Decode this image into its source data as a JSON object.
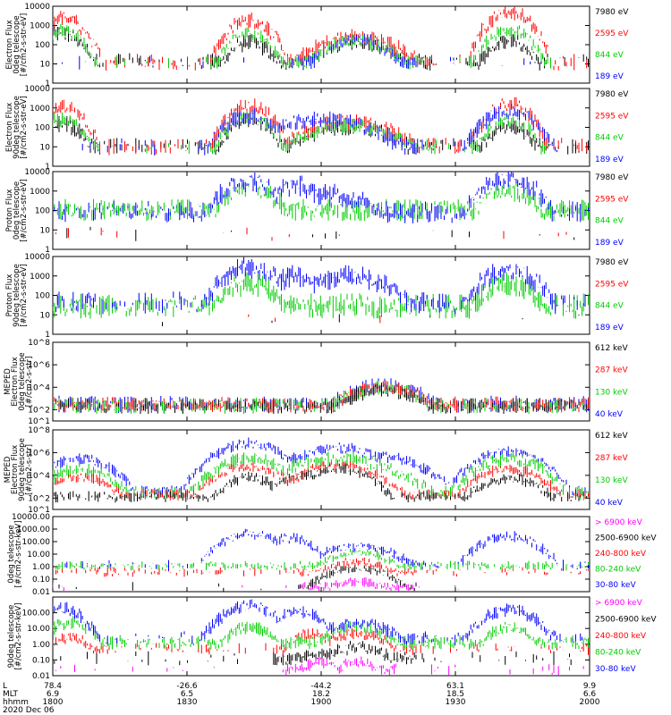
{
  "figure": {
    "date_label": "2020 Dec 06",
    "x_axis_row_labels": [
      "L",
      "MLT",
      "hhmm"
    ],
    "x_ticks": [
      {
        "L": "78.4",
        "MLT": "6.9",
        "hhmm": "1800"
      },
      {
        "L": "-26.6",
        "MLT": "6.5",
        "hhmm": "1830"
      },
      {
        "L": "-44.2",
        "MLT": "18.2",
        "hhmm": "1900"
      },
      {
        "L": "63.1",
        "MLT": "18.5",
        "hhmm": "1930"
      },
      {
        "L": "9.9",
        "MLT": "6.6",
        "hhmm": "2000"
      }
    ]
  },
  "colors": {
    "black": "#000000",
    "red": "#ff0000",
    "green": "#00cc00",
    "blue": "#0000ff",
    "magenta": "#ff00ff"
  },
  "chart_data": [
    {
      "type": "line",
      "ylabel": [
        "Electron Flux",
        "0deg telescope",
        "[#/cm2-s-str-eV]"
      ],
      "yscale": "log",
      "ylim": [
        1,
        10000
      ],
      "ytick_labels": [
        "1",
        "10",
        "100",
        "1000",
        "10000"
      ],
      "legend": [
        {
          "label": "7980 eV",
          "color": "#000000"
        },
        {
          "label": "2595 eV",
          "color": "#ff0000"
        },
        {
          "label": "844 eV",
          "color": "#00cc00"
        },
        {
          "label": "189 eV",
          "color": "#0000ff"
        }
      ],
      "series": [
        {
          "color": "#000000",
          "base": 10,
          "noise": 0.35,
          "density": 0.3,
          "bumps": [
            [
              1802,
              4,
              300
            ],
            [
              1844,
              4,
              100
            ],
            [
              1908,
              7,
              120
            ],
            [
              1942,
              4,
              120
            ]
          ]
        },
        {
          "color": "#ff0000",
          "base": 10,
          "noise": 0.35,
          "density": 0.25,
          "bumps": [
            [
              1802,
              4,
              2000
            ],
            [
              1844,
              4,
              1500
            ],
            [
              1908,
              8,
              200
            ],
            [
              1942,
              4,
              4000
            ]
          ]
        },
        {
          "color": "#00cc00",
          "base": 10,
          "noise": 0.3,
          "density": 0.1,
          "bumps": [
            [
              1802,
              4,
              400
            ],
            [
              1844,
              4,
              300
            ],
            [
              1908,
              7,
              120
            ],
            [
              1942,
              4,
              500
            ]
          ]
        },
        {
          "color": "#0000ff",
          "base": 10,
          "noise": 0.3,
          "density": 0.05,
          "bumps": [
            [
              1908,
              6,
              150
            ]
          ]
        }
      ]
    },
    {
      "type": "line",
      "ylabel": [
        "Electron Flux",
        "90deg telescope",
        "[#/cm2-s-str-eV]"
      ],
      "yscale": "log",
      "ylim": [
        1,
        10000
      ],
      "ytick_labels": [
        "1",
        "10",
        "100",
        "1000",
        "10000"
      ],
      "legend": [
        {
          "label": "7980 eV",
          "color": "#000000"
        },
        {
          "label": "2595 eV",
          "color": "#ff0000"
        },
        {
          "label": "844 eV",
          "color": "#00cc00"
        },
        {
          "label": "189 eV",
          "color": "#0000ff"
        }
      ],
      "series": [
        {
          "color": "#000000",
          "base": 8,
          "noise": 0.35,
          "density": 0.35,
          "bumps": [
            [
              1802,
              4,
              120
            ],
            [
              1844,
              4,
              200
            ],
            [
              1906,
              9,
              80
            ],
            [
              1942,
              4,
              100
            ]
          ]
        },
        {
          "color": "#ff0000",
          "base": 8,
          "noise": 0.35,
          "density": 0.25,
          "bumps": [
            [
              1802,
              4,
              800
            ],
            [
              1844,
              4,
              1000
            ],
            [
              1906,
              9,
              150
            ],
            [
              1942,
              4,
              1200
            ]
          ]
        },
        {
          "color": "#00cc00",
          "base": 8,
          "noise": 0.3,
          "density": 0.1,
          "bumps": [
            [
              1802,
              4,
              200
            ],
            [
              1844,
              4,
              300
            ],
            [
              1906,
              9,
              100
            ],
            [
              1942,
              4,
              200
            ]
          ]
        },
        {
          "color": "#0000ff",
          "base": 8,
          "noise": 0.35,
          "density": 0.1,
          "bumps": [
            [
              1844,
              5,
              300
            ],
            [
              1900,
              10,
              200
            ],
            [
              1942,
              5,
              500
            ]
          ]
        }
      ]
    },
    {
      "type": "line",
      "ylabel": [
        "Proton Flux",
        "0deg telescope",
        "[#/cm2-s-str-eV]"
      ],
      "yscale": "log",
      "ylim": [
        1,
        10000
      ],
      "ytick_labels": [
        "1",
        "10",
        "100",
        "1000",
        "10000"
      ],
      "legend": [
        {
          "label": "7980 eV",
          "color": "#000000"
        },
        {
          "label": "2595 eV",
          "color": "#ff0000"
        },
        {
          "label": "844 eV",
          "color": "#00cc00"
        },
        {
          "label": "189 eV",
          "color": "#0000ff"
        }
      ],
      "series": [
        {
          "color": "#000000",
          "base": 5,
          "noise": 0.3,
          "density": 0.03,
          "bumps": []
        },
        {
          "color": "#ff0000",
          "base": 5,
          "noise": 0.3,
          "density": 0.03,
          "bumps": []
        },
        {
          "color": "#00cc00",
          "base": 80,
          "noise": 0.45,
          "density": 0.92,
          "bumps": [
            [
              1844,
              5,
              1000
            ],
            [
              1942,
              5,
              800
            ]
          ]
        },
        {
          "color": "#0000ff",
          "base": 60,
          "noise": 0.45,
          "density": 0.55,
          "bumps": [
            [
              1844,
              5,
              2500
            ],
            [
              1854,
              4,
              1500
            ],
            [
              1900,
              10,
              500
            ],
            [
              1942,
              5,
              3000
            ]
          ]
        }
      ]
    },
    {
      "type": "line",
      "ylabel": [
        "Proton Flux",
        "90deg telescope",
        "[#/cm2-s-str-eV]"
      ],
      "yscale": "log",
      "ylim": [
        1,
        10000
      ],
      "ytick_labels": [
        "1",
        "10",
        "100",
        "1000",
        "10000"
      ],
      "legend": [
        {
          "label": "7980 eV",
          "color": "#000000"
        },
        {
          "label": "2595 eV",
          "color": "#ff0000"
        },
        {
          "label": "844 eV",
          "color": "#00cc00"
        },
        {
          "label": "189 eV",
          "color": "#0000ff"
        }
      ],
      "series": [
        {
          "color": "#000000",
          "base": 5,
          "noise": 0.3,
          "density": 0.02,
          "bumps": []
        },
        {
          "color": "#ff0000",
          "base": 5,
          "noise": 0.3,
          "density": 0.02,
          "bumps": []
        },
        {
          "color": "#00cc00",
          "base": 20,
          "noise": 0.5,
          "density": 0.85,
          "bumps": [
            [
              1844,
              5,
              300
            ],
            [
              1942,
              5,
              300
            ]
          ]
        },
        {
          "color": "#0000ff",
          "base": 30,
          "noise": 0.45,
          "density": 0.45,
          "bumps": [
            [
              1844,
              5,
              2000
            ],
            [
              1854,
              4,
              700
            ],
            [
              1906,
              8,
              700
            ],
            [
              1942,
              5,
              1500
            ]
          ]
        }
      ]
    },
    {
      "type": "line",
      "ylabel": [
        "MEPED",
        "Electron Flux",
        "0deg telescope",
        "[#/cm2-s-str]"
      ],
      "yscale": "log",
      "ylim": [
        10,
        100000000
      ],
      "ytick_labels": [
        "10^1",
        "10^2",
        "10^4",
        "10^6",
        "10^8"
      ],
      "legend": [
        {
          "label": "612 keV",
          "color": "#000000"
        },
        {
          "label": "287 keV",
          "color": "#ff0000"
        },
        {
          "label": "130 keV",
          "color": "#00cc00"
        },
        {
          "label": "40 keV",
          "color": "#0000ff"
        }
      ],
      "series": [
        {
          "color": "#0000ff",
          "base": 200,
          "noise": 0.6,
          "density": 0.7,
          "bumps": [
            [
              1914,
              6,
              8000
            ]
          ]
        },
        {
          "color": "#00cc00",
          "base": 150,
          "noise": 0.55,
          "density": 0.75,
          "bumps": [
            [
              1914,
              6,
              6000
            ]
          ]
        },
        {
          "color": "#ff0000",
          "base": 200,
          "noise": 0.55,
          "density": 0.75,
          "bumps": [
            [
              1914,
              6,
              7000
            ]
          ]
        },
        {
          "color": "#000000",
          "base": 150,
          "noise": 0.55,
          "density": 0.7,
          "bumps": [
            [
              1914,
              6,
              4000
            ]
          ]
        }
      ]
    },
    {
      "type": "line",
      "ylabel": [
        "MEPED",
        "Electron Flux",
        "90deg telescope",
        "[#/cm2-s-str]"
      ],
      "yscale": "log",
      "ylim": [
        10,
        100000000
      ],
      "ytick_labels": [
        "10^1",
        "10^2",
        "10^4",
        "10^6",
        "10^8"
      ],
      "legend": [
        {
          "label": "612 keV",
          "color": "#000000"
        },
        {
          "label": "287 keV",
          "color": "#ff0000"
        },
        {
          "label": "130 keV",
          "color": "#00cc00"
        },
        {
          "label": "40 keV",
          "color": "#0000ff"
        }
      ],
      "series": [
        {
          "color": "#0000ff",
          "base": 300,
          "noise": 0.4,
          "density": 0.8,
          "bumps": [
            [
              1806,
              5,
              200000
            ],
            [
              1844,
              5,
              5000000
            ],
            [
              1856,
              4,
              300000
            ],
            [
              1904,
              6,
              2000000
            ],
            [
              1914,
              6,
              300000
            ],
            [
              1942,
              5,
              1000000
            ]
          ]
        },
        {
          "color": "#00cc00",
          "base": 200,
          "noise": 0.5,
          "density": 0.8,
          "bumps": [
            [
              1806,
              5,
              20000
            ],
            [
              1844,
              5,
              200000
            ],
            [
              1904,
              8,
              200000
            ],
            [
              1942,
              5,
              200000
            ]
          ]
        },
        {
          "color": "#ff0000",
          "base": 150,
          "noise": 0.4,
          "density": 0.75,
          "bumps": [
            [
              1806,
              5,
              5000
            ],
            [
              1844,
              5,
              50000
            ],
            [
              1856,
              4,
              3000
            ],
            [
              1904,
              6,
              60000
            ],
            [
              1942,
              5,
              30000
            ]
          ]
        },
        {
          "color": "#000000",
          "base": 100,
          "noise": 0.4,
          "density": 0.7,
          "bumps": [
            [
              1844,
              4,
              5000
            ],
            [
              1856,
              4,
              10000
            ],
            [
              1904,
              5,
              30000
            ],
            [
              1942,
              5,
              4000
            ]
          ]
        }
      ]
    },
    {
      "type": "line",
      "ylabel": [
        "0deg telescope",
        "[#/cm2-s-str-keV]"
      ],
      "yscale": "log",
      "ylim": [
        0.01,
        10000
      ],
      "ytick_labels": [
        "0.01",
        "0.10",
        "1.00",
        "10.00",
        "100.00",
        "1000.00",
        "10000.00"
      ],
      "legend": [
        {
          "label": "> 6900 keV",
          "color": "#ff00ff"
        },
        {
          "label": "2500-6900 keV",
          "color": "#000000"
        },
        {
          "label": "240-800 keV",
          "color": "#ff0000"
        },
        {
          "label": "80-240 keV",
          "color": "#00cc00"
        },
        {
          "label": "30-80 keV",
          "color": "#0000ff"
        }
      ],
      "series": [
        {
          "color": "#ff00ff",
          "base": 0.02,
          "noise": 0.3,
          "density": 0.02,
          "bumps": [
            [
              1908,
              6,
              0.05
            ]
          ]
        },
        {
          "color": "#000000",
          "base": 0.02,
          "noise": 0.3,
          "density": 0.03,
          "bumps": [
            [
              1908,
              6,
              0.6
            ]
          ]
        },
        {
          "color": "#ff0000",
          "base": 0.3,
          "noise": 0.3,
          "density": 0.25,
          "bumps": [
            [
              1908,
              6,
              2
            ]
          ]
        },
        {
          "color": "#00cc00",
          "base": 1,
          "noise": 0.3,
          "density": 0.6,
          "bumps": [
            [
              1908,
              6,
              10
            ]
          ]
        },
        {
          "color": "#0000ff",
          "base": 1,
          "noise": 0.35,
          "density": 0.25,
          "bumps": [
            [
              1844,
              5,
              300
            ],
            [
              1853,
              4,
              150
            ],
            [
              1908,
              7,
              30
            ],
            [
              1942,
              5,
              200
            ]
          ]
        }
      ]
    },
    {
      "type": "line",
      "ylabel": [
        "90deg telescope",
        "[#/cm2-s-str-keV]"
      ],
      "yscale": "log",
      "ylim": [
        0.01,
        1000
      ],
      "ytick_labels": [
        "0.01",
        "0.10",
        "1.00",
        "10.00",
        "100.00"
      ],
      "legend": [
        {
          "label": "> 6900 keV",
          "color": "#ff00ff"
        },
        {
          "label": "2500-6900 keV",
          "color": "#000000"
        },
        {
          "label": "240-800 keV",
          "color": "#ff0000"
        },
        {
          "label": "80-240 keV",
          "color": "#00cc00"
        },
        {
          "label": "30-80 keV",
          "color": "#0000ff"
        }
      ],
      "series": [
        {
          "color": "#ff00ff",
          "base": 0.02,
          "noise": 0.3,
          "density": 0.05,
          "bumps": [
            [
              1900,
              4,
              0.06
            ],
            [
              1908,
              4,
              0.06
            ]
          ]
        },
        {
          "color": "#000000",
          "base": 0.1,
          "noise": 0.35,
          "density": 0.15,
          "bumps": [
            [
              1858,
              4,
              0.2
            ],
            [
              1908,
              6,
              0.5
            ]
          ]
        },
        {
          "color": "#ff0000",
          "base": 0.4,
          "noise": 0.3,
          "density": 0.3,
          "bumps": [
            [
              1804,
              4,
              2
            ],
            [
              1858,
              4,
              4
            ],
            [
              1908,
              6,
              4
            ]
          ]
        },
        {
          "color": "#00cc00",
          "base": 1,
          "noise": 0.35,
          "density": 0.7,
          "bumps": [
            [
              1804,
              4,
              20
            ],
            [
              1844,
              4,
              10
            ],
            [
              1908,
              6,
              10
            ],
            [
              1942,
              4,
              10
            ]
          ]
        },
        {
          "color": "#0000ff",
          "base": 2,
          "noise": 0.35,
          "density": 0.3,
          "bumps": [
            [
              1802,
              4,
              150
            ],
            [
              1844,
              5,
              200
            ],
            [
              1855,
              4,
              100
            ],
            [
              1908,
              7,
              15
            ],
            [
              1942,
              5,
              120
            ]
          ]
        }
      ]
    }
  ]
}
